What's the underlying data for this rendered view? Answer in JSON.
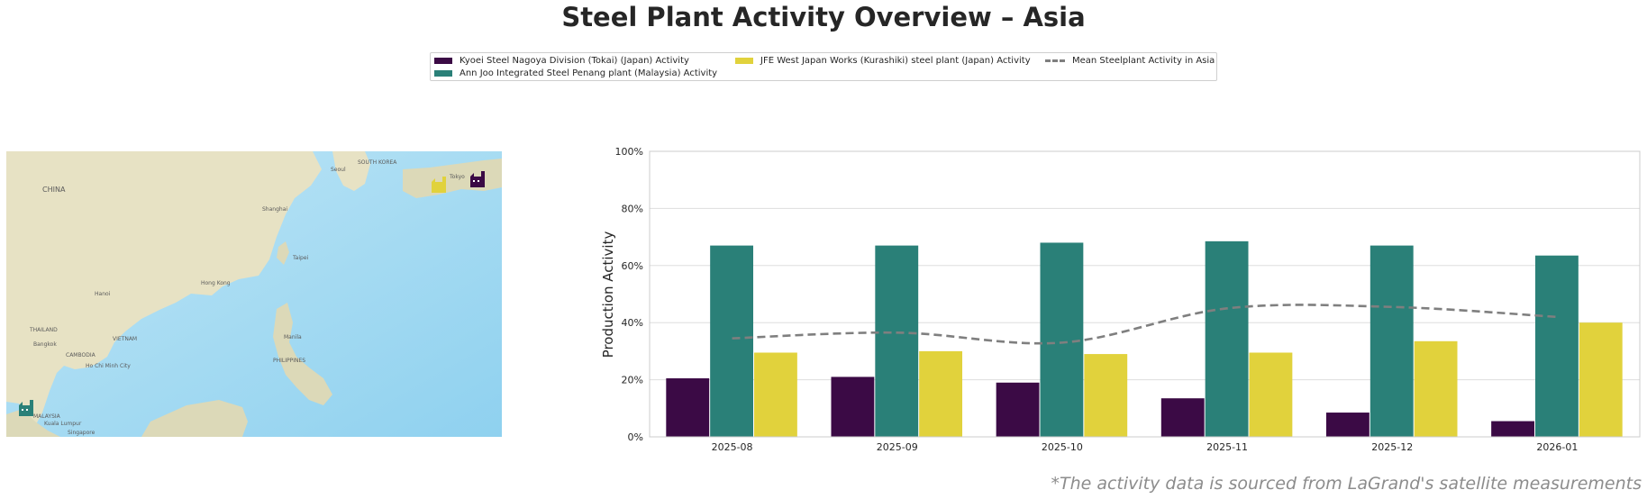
{
  "title": "Steel Plant Activity Overview – Asia",
  "footnote": "*The activity data is sourced from LaGrand's satellite measurements",
  "legend": {
    "items": [
      {
        "label": "Kyoei Steel Nagoya Division (Tokai) (Japan) Activity",
        "color": "#3b0a45"
      },
      {
        "label": "Ann Joo Integrated Steel Penang plant (Malaysia) Activity",
        "color": "#2a8078"
      },
      {
        "label": "JFE West Japan Works (Kurashiki) steel plant (Japan) Activity",
        "color": "#e1d23c"
      },
      {
        "label": "Mean Steelplant Activity in Asia",
        "color": "#7f7f7f"
      }
    ]
  },
  "map": {
    "labels": [
      "CHINA",
      "SOUTH KOREA",
      "THAILAND",
      "VIETNAM",
      "CAMBODIA",
      "PHILIPPINES",
      "MALAYSIA",
      "Shanghai",
      "Taipei",
      "Manila",
      "Hong Kong",
      "Kuala Lumpur",
      "Singapore",
      "Tokyo",
      "Seoul",
      "Ho Chi Minh City",
      "Bangkok",
      "Hanoi"
    ],
    "markers": [
      {
        "name": "Kyoei Steel Nagoya Division (Tokai)",
        "color": "#3b0a45"
      },
      {
        "name": "JFE West Japan Works (Kurashiki)",
        "color": "#e1d23c"
      },
      {
        "name": "Ann Joo Integrated Steel Penang plant",
        "color": "#2a8078"
      }
    ]
  },
  "chart_data": {
    "type": "bar",
    "categories": [
      "2025-08",
      "2025-09",
      "2025-10",
      "2025-11",
      "2025-12",
      "2026-01"
    ],
    "series": [
      {
        "name": "Kyoei Steel Nagoya Division (Tokai) (Japan) Activity",
        "values": [
          20.5,
          21,
          19,
          13.5,
          8.5,
          5.5
        ],
        "color": "#3b0a45"
      },
      {
        "name": "Ann Joo Integrated Steel Penang plant (Malaysia) Activity",
        "values": [
          67,
          67,
          68,
          68.5,
          67,
          63.5
        ],
        "color": "#2a8078"
      },
      {
        "name": "JFE West Japan Works (Kurashiki) steel plant (Japan) Activity",
        "values": [
          29.5,
          30,
          29,
          29.5,
          33.5,
          40
        ],
        "color": "#e1d23c"
      }
    ],
    "mean_line": {
      "name": "Mean Steelplant Activity in Asia",
      "values": [
        34.5,
        36.5,
        33,
        45,
        45.5,
        42
      ],
      "color": "#7f7f7f",
      "style": "dashed"
    },
    "ylabel": "Production Activity",
    "xlabel": "",
    "ylim": [
      0,
      100
    ],
    "yticks": [
      "0%",
      "20%",
      "40%",
      "60%",
      "80%",
      "100%"
    ],
    "grid": true
  }
}
